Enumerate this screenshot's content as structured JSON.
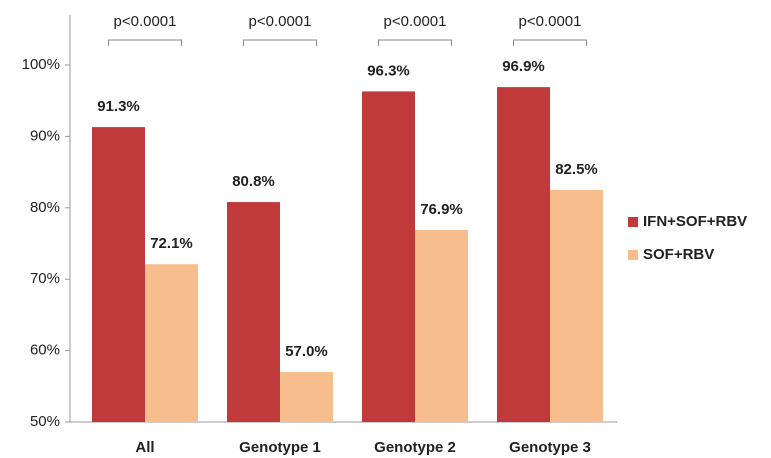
{
  "chart_data": {
    "type": "bar",
    "categories": [
      "All",
      "Genotype 1",
      "Genotype 2",
      "Genotype 3"
    ],
    "series": [
      {
        "name": "IFN+SOF+RBV",
        "color": "#c0393b",
        "values": [
          91.3,
          80.8,
          96.3,
          96.9
        ],
        "value_labels": [
          "91.3%",
          "80.8%",
          "96.3%",
          "96.9%"
        ]
      },
      {
        "name": "SOF+RBV",
        "color": "#f7bd8c",
        "values": [
          72.1,
          57.0,
          76.9,
          82.5
        ],
        "value_labels": [
          "72.1%",
          "57.0%",
          "76.9%",
          "82.5%"
        ]
      }
    ],
    "annotations": [
      "p<0.0001",
      "p<0.0001",
      "p<0.0001",
      "p<0.0001"
    ],
    "ylim": [
      50,
      107
    ],
    "yticks": [
      {
        "value": 50,
        "label": "50%"
      },
      {
        "value": 60,
        "label": "60%"
      },
      {
        "value": 70,
        "label": "70%"
      },
      {
        "value": 80,
        "label": "80%"
      },
      {
        "value": 90,
        "label": "90%"
      },
      {
        "value": 100,
        "label": "100%"
      }
    ],
    "grid": false,
    "legend": "right"
  }
}
